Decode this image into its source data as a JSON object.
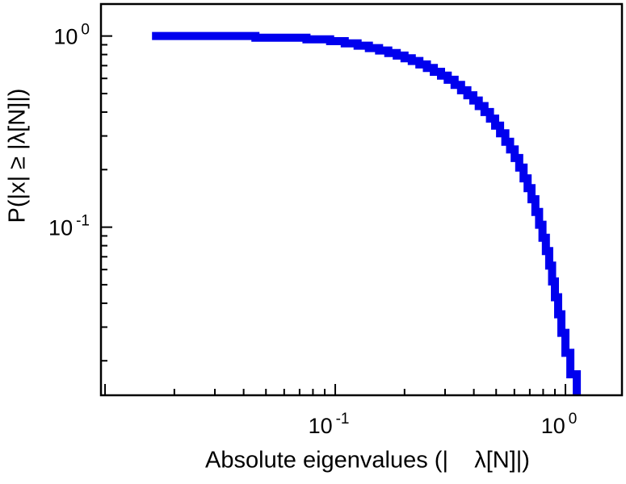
{
  "chart_data": {
    "type": "line",
    "subtype": "step-ccdf",
    "title": "",
    "xlabel": "Absolute eigenvalues (|    λ[N]|)",
    "ylabel": "P(|x| ≥ |λ[N]|)",
    "xscale": "log",
    "yscale": "log",
    "xlim": [
      0.0096,
      1.76
    ],
    "ylim": [
      0.0132,
      1.47
    ],
    "grid": false,
    "legend": "none",
    "line": {
      "color": "#0000ee",
      "width": 10
    },
    "x_ticks": {
      "major": [
        0.01,
        0.1,
        1
      ],
      "labeled": [
        {
          "value": 0.1,
          "base": "10",
          "exp": "-1"
        },
        {
          "value": 1,
          "base": "10",
          "exp": "0"
        }
      ]
    },
    "y_ticks": {
      "major": [
        0.1,
        1
      ],
      "labeled": [
        {
          "value": 1,
          "base": "10",
          "exp": "0"
        },
        {
          "value": 0.1,
          "base": "10",
          "exp": "-1"
        }
      ]
    },
    "points": [
      [
        0.016,
        1.0
      ],
      [
        0.045,
        0.98
      ],
      [
        0.075,
        0.96
      ],
      [
        0.095,
        0.94
      ],
      [
        0.11,
        0.915
      ],
      [
        0.125,
        0.89
      ],
      [
        0.14,
        0.865
      ],
      [
        0.155,
        0.84
      ],
      [
        0.17,
        0.815
      ],
      [
        0.185,
        0.79
      ],
      [
        0.2,
        0.765
      ],
      [
        0.215,
        0.74
      ],
      [
        0.232,
        0.71
      ],
      [
        0.25,
        0.68
      ],
      [
        0.268,
        0.65
      ],
      [
        0.288,
        0.62
      ],
      [
        0.308,
        0.59
      ],
      [
        0.33,
        0.555
      ],
      [
        0.352,
        0.52
      ],
      [
        0.375,
        0.49
      ],
      [
        0.398,
        0.46
      ],
      [
        0.42,
        0.43
      ],
      [
        0.445,
        0.4
      ],
      [
        0.47,
        0.37
      ],
      [
        0.495,
        0.34
      ],
      [
        0.52,
        0.31
      ],
      [
        0.548,
        0.28
      ],
      [
        0.575,
        0.255
      ],
      [
        0.602,
        0.23
      ],
      [
        0.63,
        0.205
      ],
      [
        0.658,
        0.18
      ],
      [
        0.685,
        0.16
      ],
      [
        0.712,
        0.14
      ],
      [
        0.74,
        0.12
      ],
      [
        0.768,
        0.103
      ],
      [
        0.795,
        0.088
      ],
      [
        0.822,
        0.075
      ],
      [
        0.85,
        0.063
      ],
      [
        0.875,
        0.052
      ],
      [
        0.9,
        0.043
      ],
      [
        0.93,
        0.035
      ],
      [
        0.96,
        0.028
      ],
      [
        1.0,
        0.022
      ],
      [
        1.05,
        0.017
      ],
      [
        1.12,
        0.0132
      ]
    ]
  }
}
